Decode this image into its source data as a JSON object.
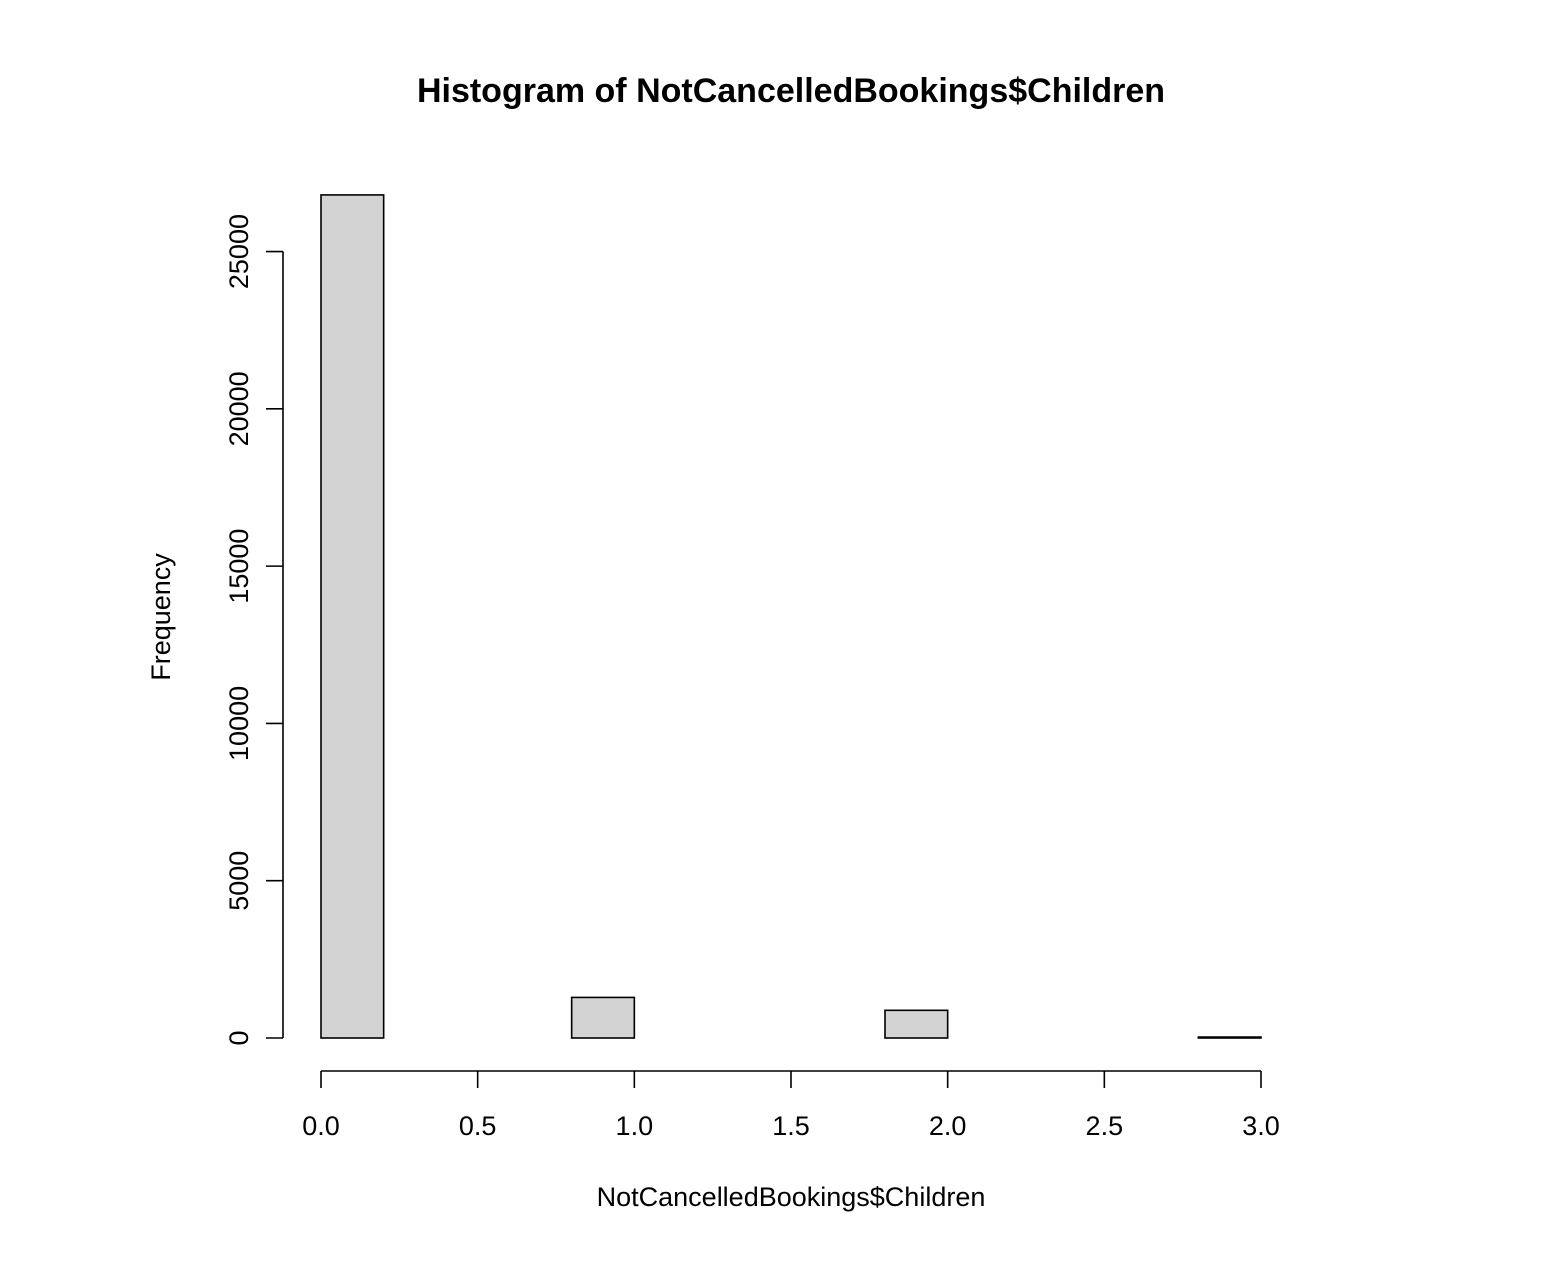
{
  "chart_data": {
    "type": "bar",
    "title": "Histogram of NotCancelledBookings$Children",
    "xlabel": "NotCancelledBookings$Children",
    "ylabel": "Frequency",
    "bin_edges": [
      0.0,
      0.2,
      0.4,
      0.6,
      0.8,
      1.0,
      1.2,
      1.4,
      1.6,
      1.8,
      2.0,
      2.2,
      2.4,
      2.6,
      2.8,
      3.0
    ],
    "values": [
      26800,
      0,
      0,
      0,
      1290,
      0,
      0,
      0,
      0,
      880,
      0,
      0,
      0,
      0,
      30
    ],
    "xlim": [
      0.0,
      3.0
    ],
    "ylim": [
      0,
      26800
    ],
    "x_ticks": [
      0.0,
      0.5,
      1.0,
      1.5,
      2.0,
      2.5,
      3.0
    ],
    "x_tick_labels": [
      "0.0",
      "0.5",
      "1.0",
      "1.5",
      "2.0",
      "2.5",
      "3.0"
    ],
    "y_ticks": [
      0,
      5000,
      10000,
      15000,
      20000,
      25000
    ],
    "y_tick_labels": [
      "0",
      "5000",
      "10000",
      "15000",
      "20000",
      "25000"
    ],
    "grid": false,
    "legend": "none",
    "bar_fill": "#d3d3d3",
    "bar_stroke": "#000000"
  }
}
